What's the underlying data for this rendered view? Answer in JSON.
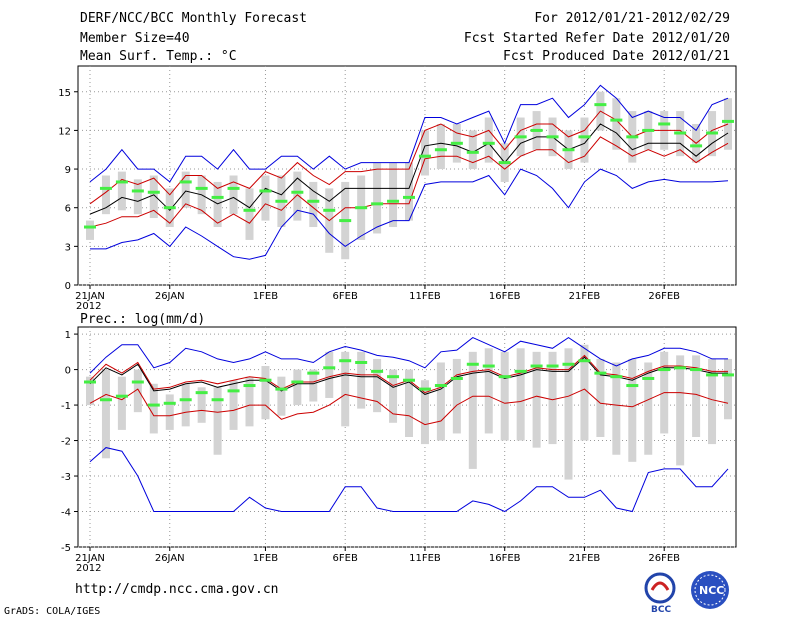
{
  "header": {
    "title": "DERF/NCC/BCC Monthly Forecast",
    "member": "Member Size=40",
    "variable": "Mean Surf. Temp.: °C",
    "period": "For 2012/01/21-2012/02/29",
    "started": "Fcst Started Refer Date 2012/01/20",
    "produced": "Fcst Produced Date 2012/01/21"
  },
  "footer": {
    "url": "http://cmdp.ncc.cma.gov.cn",
    "grads": "GrADS: COLA/IGES",
    "logo_bcc": "BCC",
    "logo_ncc": "NCC"
  },
  "colors": {
    "box": "#d3d3d3",
    "median": "#44ee44",
    "mean": "#000000",
    "sd": "#cc0000",
    "extreme": "#0000dd",
    "grid": "#999999"
  },
  "chart_data": [
    {
      "type": "box",
      "title": "Mean Surf. Temp.: °C",
      "ylim": [
        0,
        17
      ],
      "yticks": [
        0,
        3,
        6,
        9,
        12,
        15
      ],
      "xticks": [
        {
          "i": 0,
          "label": "21JAN",
          "sub": "2012"
        },
        {
          "i": 5,
          "label": "26JAN"
        },
        {
          "i": 11,
          "label": "1FEB"
        },
        {
          "i": 16,
          "label": "6FEB"
        },
        {
          "i": 21,
          "label": "11FEB"
        },
        {
          "i": 26,
          "label": "16FEB"
        },
        {
          "i": 31,
          "label": "21FEB"
        },
        {
          "i": 36,
          "label": "26FEB"
        }
      ],
      "median": [
        4.5,
        7.5,
        8.0,
        7.3,
        7.2,
        6.0,
        8.0,
        7.5,
        6.8,
        7.5,
        5.8,
        7.3,
        6.5,
        7.2,
        6.5,
        5.8,
        5.0,
        6.0,
        6.3,
        6.5,
        6.8,
        10.0,
        10.5,
        11.0,
        10.3,
        11.0,
        9.5,
        11.5,
        12.0,
        11.5,
        10.5,
        11.5,
        14.0,
        12.8,
        11.5,
        12.0,
        12.5,
        11.8,
        10.8,
        11.8,
        12.7
      ],
      "box_low": [
        3.5,
        5.5,
        5.8,
        5.5,
        5.2,
        4.5,
        6.0,
        5.5,
        4.5,
        5.5,
        3.5,
        5.0,
        4.5,
        5.0,
        4.5,
        2.5,
        2.0,
        3.5,
        4.0,
        4.5,
        5.0,
        8.5,
        9.0,
        9.5,
        9.0,
        9.5,
        8.0,
        10.0,
        10.5,
        10.0,
        9.0,
        9.5,
        12.0,
        10.5,
        9.5,
        10.5,
        10.5,
        10.0,
        9.5,
        10.0,
        10.5
      ],
      "box_high": [
        5.0,
        8.5,
        8.8,
        8.2,
        8.5,
        7.5,
        8.8,
        8.5,
        8.0,
        8.5,
        7.5,
        8.5,
        8.5,
        8.8,
        8.0,
        7.5,
        8.0,
        8.5,
        9.5,
        9.5,
        9.5,
        12.0,
        12.5,
        12.5,
        12.0,
        13.0,
        11.0,
        13.0,
        13.5,
        13.0,
        12.0,
        13.0,
        15.0,
        14.5,
        13.5,
        13.5,
        13.5,
        13.5,
        12.5,
        13.5,
        14.5
      ],
      "mean": [
        5.5,
        6.0,
        6.8,
        6.5,
        7.0,
        5.8,
        7.3,
        7.0,
        6.3,
        6.8,
        6.0,
        7.5,
        7.0,
        8.3,
        7.3,
        6.5,
        7.5,
        7.5,
        7.5,
        7.5,
        7.5,
        10.8,
        11.0,
        10.8,
        10.3,
        11.0,
        9.5,
        11.0,
        11.5,
        11.5,
        10.5,
        11.0,
        12.5,
        11.8,
        10.5,
        11.0,
        11.0,
        11.0,
        10.0,
        11.0,
        11.8
      ],
      "sd_low": [
        4.5,
        4.8,
        5.3,
        5.3,
        5.8,
        4.8,
        6.3,
        5.8,
        4.8,
        5.5,
        4.8,
        6.3,
        5.8,
        7.0,
        6.0,
        5.0,
        6.0,
        6.0,
        6.3,
        6.3,
        6.3,
        9.8,
        10.0,
        10.0,
        9.5,
        10.0,
        9.0,
        10.0,
        10.5,
        10.5,
        9.5,
        10.0,
        11.5,
        10.8,
        10.0,
        10.5,
        10.0,
        10.5,
        9.5,
        10.3,
        11.0
      ],
      "sd_high": [
        6.3,
        7.2,
        8.2,
        7.8,
        8.3,
        7.0,
        8.5,
        8.5,
        7.5,
        8.0,
        7.5,
        8.8,
        8.3,
        9.5,
        8.5,
        7.8,
        8.8,
        8.8,
        9.0,
        9.0,
        9.0,
        12.0,
        12.5,
        11.8,
        11.5,
        12.0,
        10.5,
        12.0,
        12.5,
        12.5,
        11.5,
        12.0,
        13.5,
        12.8,
        11.5,
        12.0,
        12.0,
        12.0,
        11.0,
        12.0,
        12.5
      ],
      "min": [
        2.8,
        2.8,
        3.3,
        3.5,
        4.0,
        3.0,
        4.5,
        3.8,
        3.0,
        2.2,
        2.0,
        2.3,
        4.5,
        5.8,
        5.5,
        4.0,
        3.0,
        3.8,
        4.5,
        5.0,
        5.0,
        7.8,
        8.0,
        8.0,
        8.0,
        8.5,
        7.0,
        9.0,
        8.5,
        7.5,
        6.0,
        8.0,
        9.0,
        8.5,
        7.5,
        8.0,
        8.2,
        8.0,
        8.0,
        8.0,
        8.1
      ],
      "max": [
        8.0,
        9.0,
        10.5,
        9.0,
        9.0,
        8.0,
        10.0,
        10.0,
        9.0,
        10.5,
        9.0,
        9.0,
        10.0,
        10.0,
        9.0,
        10.0,
        9.0,
        9.5,
        9.5,
        9.5,
        9.5,
        13.0,
        13.0,
        12.5,
        13.0,
        13.5,
        11.0,
        14.0,
        14.0,
        14.5,
        13.0,
        14.0,
        15.5,
        14.5,
        13.0,
        13.5,
        13.0,
        13.0,
        12.0,
        14.0,
        14.5
      ]
    },
    {
      "type": "box",
      "title": "Prec.: log(mm/d)",
      "ylim": [
        -5,
        1.2
      ],
      "yticks": [
        -5,
        -4,
        -3,
        -2,
        -1,
        0,
        1
      ],
      "xticks": [
        {
          "i": 0,
          "label": "21JAN",
          "sub": "2012"
        },
        {
          "i": 5,
          "label": "26JAN"
        },
        {
          "i": 11,
          "label": "1FEB"
        },
        {
          "i": 16,
          "label": "6FEB"
        },
        {
          "i": 21,
          "label": "11FEB"
        },
        {
          "i": 26,
          "label": "16FEB"
        },
        {
          "i": 31,
          "label": "21FEB"
        },
        {
          "i": 36,
          "label": "26FEB"
        }
      ],
      "median": [
        -0.35,
        -0.85,
        -0.75,
        -0.35,
        -1.0,
        -0.95,
        -0.85,
        -0.65,
        -0.85,
        -0.6,
        -0.45,
        -0.3,
        -0.55,
        -0.35,
        -0.1,
        0.05,
        0.25,
        0.2,
        -0.05,
        -0.2,
        -0.3,
        -0.55,
        -0.45,
        -0.25,
        0.15,
        0.1,
        -0.2,
        -0.05,
        0.1,
        0.1,
        0.15,
        0.25,
        -0.1,
        -0.2,
        -0.45,
        -0.25,
        0.0,
        0.05,
        0.0,
        -0.15,
        -0.15
      ],
      "box_low": [
        -1.0,
        -2.5,
        -1.7,
        -1.2,
        -1.8,
        -1.7,
        -1.6,
        -1.5,
        -2.4,
        -1.7,
        -1.6,
        -1.4,
        -1.3,
        -1.0,
        -0.9,
        -0.8,
        -1.6,
        -1.1,
        -1.2,
        -1.5,
        -1.9,
        -2.1,
        -2.0,
        -1.8,
        -2.8,
        -1.8,
        -2.0,
        -2.0,
        -2.2,
        -2.1,
        -3.1,
        -2.0,
        -1.9,
        -2.4,
        -2.6,
        -2.4,
        -1.8,
        -2.7,
        -1.9,
        -2.1,
        -1.4
      ],
      "box_high": [
        -0.2,
        0.0,
        -0.2,
        0.0,
        -0.4,
        -0.7,
        -0.4,
        -0.5,
        -0.5,
        -0.3,
        -0.2,
        0.1,
        -0.2,
        0.0,
        0.0,
        0.5,
        0.5,
        0.5,
        0.3,
        0.0,
        0.0,
        -0.3,
        0.2,
        0.3,
        0.5,
        0.6,
        0.5,
        0.6,
        0.5,
        0.5,
        0.6,
        0.7,
        0.3,
        0.2,
        0.3,
        0.2,
        0.5,
        0.4,
        0.4,
        0.3,
        0.3
      ],
      "mean": [
        -0.4,
        0.05,
        -0.15,
        0.15,
        -0.6,
        -0.55,
        -0.4,
        -0.35,
        -0.5,
        -0.4,
        -0.3,
        -0.3,
        -0.6,
        -0.4,
        -0.4,
        -0.25,
        -0.15,
        -0.2,
        -0.2,
        -0.5,
        -0.35,
        -0.7,
        -0.55,
        -0.2,
        -0.1,
        -0.05,
        -0.25,
        -0.15,
        0.0,
        -0.05,
        -0.05,
        0.35,
        -0.15,
        -0.2,
        -0.3,
        -0.1,
        0.05,
        0.05,
        0.0,
        -0.1,
        -0.1
      ],
      "sd_low": [
        -0.95,
        -0.7,
        -0.85,
        -0.55,
        -1.3,
        -1.3,
        -1.2,
        -1.15,
        -1.2,
        -1.15,
        -1.0,
        -1.0,
        -1.4,
        -1.25,
        -1.2,
        -1.0,
        -0.7,
        -0.8,
        -0.9,
        -1.25,
        -1.3,
        -1.55,
        -1.45,
        -1.0,
        -0.75,
        -0.75,
        -0.95,
        -0.9,
        -0.75,
        -0.85,
        -0.75,
        -0.55,
        -0.95,
        -1.0,
        -1.05,
        -0.85,
        -0.65,
        -0.65,
        -0.7,
        -0.85,
        -0.95
      ],
      "sd_high": [
        -0.3,
        0.15,
        -0.1,
        0.2,
        -0.55,
        -0.5,
        -0.35,
        -0.3,
        -0.4,
        -0.3,
        -0.2,
        -0.25,
        -0.55,
        -0.35,
        -0.35,
        -0.2,
        -0.1,
        -0.15,
        -0.15,
        -0.45,
        -0.3,
        -0.65,
        -0.5,
        -0.15,
        -0.05,
        0.0,
        -0.2,
        -0.1,
        0.05,
        0.0,
        0.0,
        0.4,
        -0.1,
        -0.15,
        -0.25,
        -0.05,
        0.1,
        0.1,
        0.05,
        -0.05,
        -0.05
      ],
      "min": [
        -2.6,
        -2.2,
        -2.3,
        -3.0,
        -4.0,
        -4.0,
        -4.0,
        -4.0,
        -4.0,
        -4.0,
        -3.6,
        -3.9,
        -4.0,
        -4.0,
        -4.0,
        -4.0,
        -3.3,
        -3.3,
        -3.9,
        -4.0,
        -4.0,
        -4.0,
        -4.0,
        -4.0,
        -3.7,
        -3.8,
        -4.0,
        -3.7,
        -3.3,
        -3.3,
        -3.6,
        -3.6,
        -3.4,
        -3.9,
        -4.0,
        -2.9,
        -2.8,
        -2.8,
        -3.3,
        -3.3,
        -2.8
      ],
      "max": [
        -0.1,
        0.35,
        0.7,
        0.7,
        0.05,
        0.2,
        0.6,
        0.5,
        0.3,
        0.2,
        0.3,
        0.5,
        0.3,
        0.3,
        0.2,
        0.5,
        0.65,
        0.55,
        0.4,
        0.35,
        0.25,
        0.05,
        0.5,
        0.55,
        0.9,
        0.7,
        0.5,
        0.8,
        0.7,
        0.6,
        0.9,
        0.6,
        0.3,
        0.1,
        0.3,
        0.4,
        0.6,
        0.6,
        0.5,
        0.3,
        0.3
      ]
    }
  ]
}
